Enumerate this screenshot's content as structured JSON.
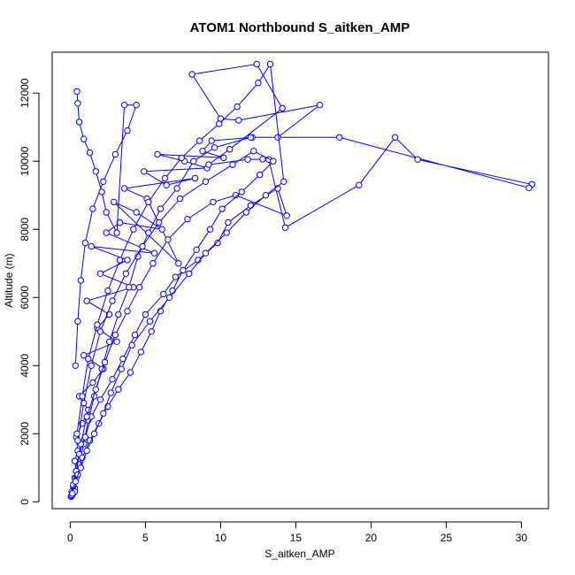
{
  "chart_data": {
    "type": "line",
    "title": "ATOM1 Northbound S_aitken_AMP",
    "xlabel": "S_aitken_AMP",
    "ylabel": "Altitude (m)",
    "xlim": [
      -1.2,
      31.8
    ],
    "ylim": [
      -200,
      13200
    ],
    "xticks": [
      0,
      5,
      10,
      15,
      20,
      25,
      30
    ],
    "yticks": [
      0,
      2000,
      4000,
      6000,
      8000,
      10000,
      12000
    ],
    "grid": false,
    "legend": "none",
    "marker": "open-circle",
    "color": "#0000ff",
    "series": [
      {
        "x": [
          0.05,
          0.1,
          0.2,
          0.3,
          0.4,
          0.3,
          0.5,
          0.4,
          0.8,
          1.2,
          0.6,
          1.5,
          2.2,
          0.9,
          3.1,
          1.8,
          2.6,
          1.1,
          4.2,
          2.0,
          3.8,
          1.4,
          5.6,
          2.4,
          3.3,
          6.1,
          4.4,
          2.9,
          7.2,
          5.1,
          3.6,
          8.3,
          6.4,
          4.9,
          9.1,
          7.6,
          5.8,
          10.2,
          8.8,
          9.4,
          12.1,
          13.8,
          16.6,
          11.2,
          10.0,
          8.1,
          12.4,
          14.1,
          10.6,
          9.2,
          11.8,
          12.8,
          13.2,
          14.3,
          19.2,
          21.6,
          23.1,
          30.7,
          30.5,
          17.9,
          12.0,
          9.6,
          8.2,
          7.1,
          6.0,
          5.2,
          4.5,
          3.9,
          3.2,
          2.6,
          2.1,
          1.6,
          1.2,
          0.9,
          0.6,
          0.4,
          0.3,
          0.2,
          0.1
        ],
        "y": [
          150,
          300,
          450,
          700,
          900,
          1200,
          1500,
          1900,
          2300,
          2700,
          3100,
          3500,
          3900,
          4300,
          4700,
          5100,
          5500,
          5900,
          6300,
          6700,
          7100,
          7500,
          7300,
          7900,
          8200,
          8000,
          8500,
          8800,
          7000,
          8900,
          9200,
          9500,
          9300,
          9700,
          9800,
          10000,
          10200,
          10100,
          10300,
          10600,
          10700,
          10700,
          11650,
          11200,
          11250,
          12550,
          12850,
          11550,
          10350,
          9900,
          10050,
          10060,
          10050,
          8050,
          9300,
          10700,
          10050,
          9320,
          9220,
          10700,
          10700,
          10400,
          10000,
          9200,
          8600,
          7900,
          7200,
          6300,
          5500,
          4700,
          3900,
          3100,
          2400,
          1700,
          1100,
          700,
          400,
          250,
          180
        ]
      },
      {
        "x": [
          0.1,
          0.2,
          0.4,
          0.6,
          1.0,
          1.4,
          2.0,
          2.8,
          3.5,
          4.3,
          5.0,
          6.2,
          7.0,
          8.5,
          9.8,
          10.5,
          12.0,
          13.8,
          14.4,
          11.0,
          9.5,
          7.8,
          6.5,
          5.5,
          4.6,
          3.8,
          3.0,
          2.3,
          1.7,
          1.1,
          0.7,
          0.4,
          0.25
        ],
        "y": [
          200,
          500,
          900,
          1400,
          1900,
          2500,
          3000,
          3600,
          4200,
          4900,
          5500,
          6100,
          6600,
          7100,
          7600,
          8200,
          8700,
          9200,
          8400,
          9000,
          8800,
          8300,
          7700,
          7000,
          6300,
          5600,
          4900,
          4100,
          3300,
          2500,
          1700,
          900,
          300
        ]
      },
      {
        "x": [
          0.3,
          0.5,
          0.8,
          1.3,
          1.9,
          2.5,
          3.2,
          4.0,
          4.7,
          5.4,
          6.0,
          6.8,
          7.5,
          8.4,
          9.3,
          10.1,
          11.4,
          12.6,
          13.5,
          12.2,
          10.8,
          9.0,
          7.3,
          5.9,
          4.8,
          3.7,
          2.8,
          2.0,
          1.4,
          0.9,
          0.5
        ],
        "y": [
          300,
          800,
          1300,
          1800,
          2300,
          2800,
          3300,
          3800,
          4400,
          5000,
          5600,
          6200,
          6800,
          7400,
          8000,
          8600,
          9100,
          9600,
          10000,
          10300,
          9900,
          9400,
          8900,
          8200,
          7500,
          6700,
          5900,
          5000,
          4000,
          2900,
          1800
        ]
      },
      {
        "x": [
          0.15,
          0.35,
          0.7,
          1.1,
          1.6,
          2.2,
          2.7,
          3.4,
          4.1,
          5.3,
          6.6,
          7.9,
          9.0,
          10.4,
          11.7,
          13.0,
          14.2,
          13.3,
          12.5,
          11.1,
          9.9,
          8.6,
          7.4,
          6.3,
          5.2,
          4.2,
          3.3,
          2.5,
          1.8,
          1.2,
          0.8,
          0.45
        ],
        "y": [
          250,
          600,
          1000,
          1500,
          2000,
          2600,
          3200,
          3900,
          4600,
          5300,
          6000,
          6700,
          7300,
          7900,
          8500,
          9000,
          9400,
          12850,
          12300,
          11600,
          11100,
          10600,
          10100,
          9500,
          8800,
          8000,
          7100,
          6200,
          5200,
          4200,
          3100,
          2000
        ]
      },
      {
        "x": [
          0.45,
          0.5,
          0.6,
          0.9,
          1.3,
          1.7,
          2.1,
          2.4,
          3.1,
          3.6,
          4.4,
          3.8,
          3.0,
          2.2,
          1.5,
          1.0,
          0.7,
          0.5,
          0.35
        ],
        "y": [
          12050,
          11700,
          11150,
          10650,
          10250,
          9700,
          9100,
          8500,
          7900,
          11650,
          11650,
          10900,
          10200,
          9400,
          8600,
          7600,
          6500,
          5300,
          4000
        ]
      }
    ]
  }
}
